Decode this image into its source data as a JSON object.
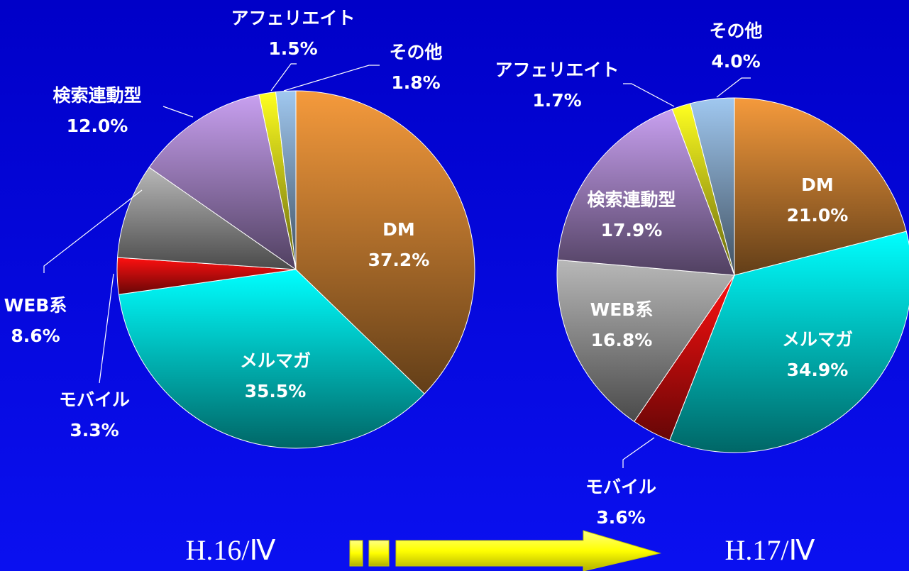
{
  "chart_data": [
    {
      "type": "pie",
      "title": "H.16/Ⅳ",
      "categories": [
        "DM",
        "メルマガ",
        "モバイル",
        "WEB系",
        "検索連動型",
        "アフェリエイト",
        "その他"
      ],
      "values": [
        37.2,
        35.5,
        3.3,
        8.6,
        12.0,
        1.5,
        1.8
      ],
      "value_labels": [
        "37.2%",
        "35.5%",
        "3.3%",
        "8.6%",
        "12.0%",
        "1.5%",
        "1.8%"
      ],
      "colors": [
        "#f59a3c",
        "#00ffff",
        "#ff1010",
        "#b8b8b8",
        "#c8a0f0",
        "#ffff20",
        "#a0c8f0"
      ]
    },
    {
      "type": "pie",
      "title": "H.17/Ⅳ",
      "categories": [
        "DM",
        "メルマガ",
        "モバイル",
        "WEB系",
        "検索連動型",
        "アフェリエイト",
        "その他"
      ],
      "values": [
        21.0,
        34.9,
        3.6,
        16.8,
        17.9,
        1.7,
        4.0
      ],
      "value_labels": [
        "21.0%",
        "34.9%",
        "3.6%",
        "16.8%",
        "17.9%",
        "1.7%",
        "4.0%"
      ],
      "colors": [
        "#f59a3c",
        "#00ffff",
        "#ff1010",
        "#b8b8b8",
        "#c8a0f0",
        "#ffff20",
        "#a0c8f0"
      ]
    }
  ]
}
